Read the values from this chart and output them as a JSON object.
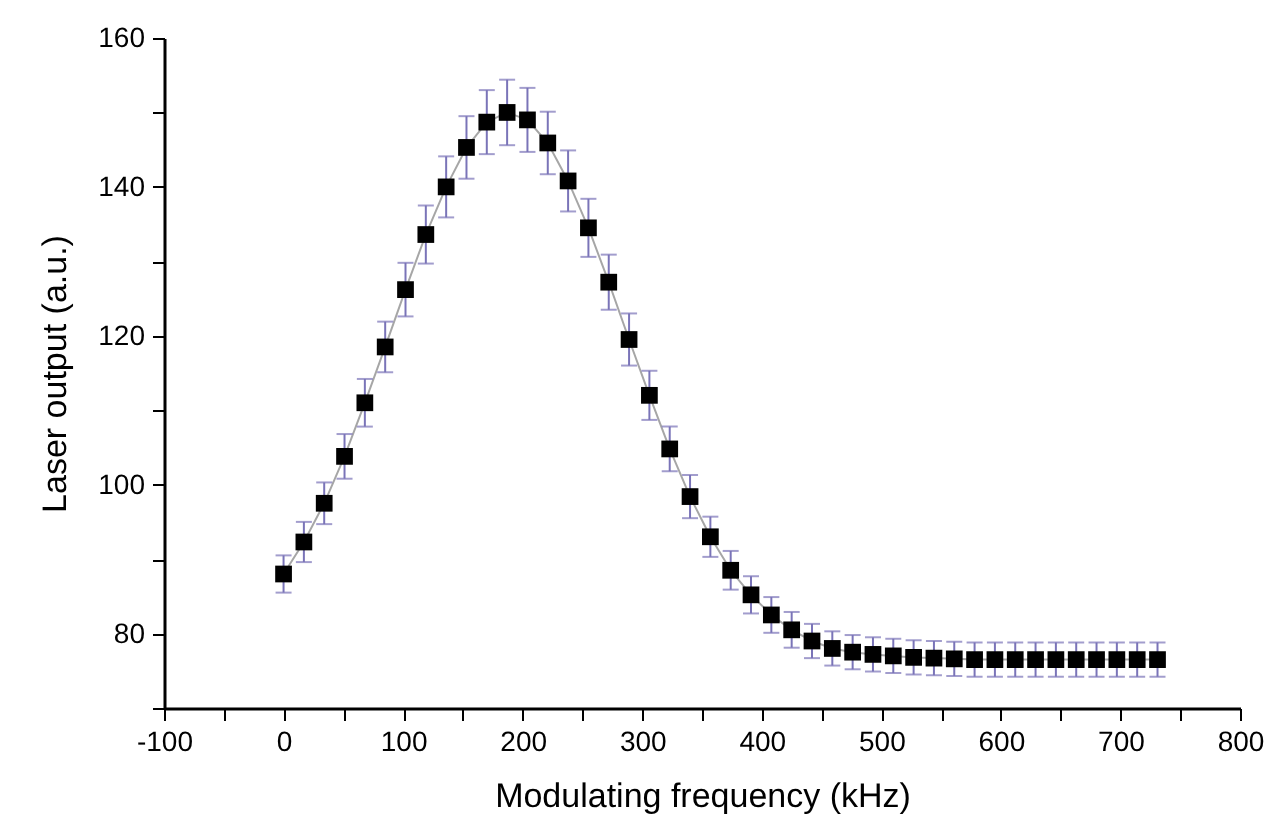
{
  "chart_data": {
    "type": "line",
    "xlabel": "Modulating frequency (kHz)",
    "ylabel": "Laser output (a.u.)",
    "x": [
      0,
      17,
      34,
      51,
      68,
      85,
      102,
      119,
      136,
      153,
      170,
      187,
      204,
      221,
      238,
      255,
      272,
      289,
      306,
      323,
      340,
      357,
      374,
      391,
      408,
      425,
      442,
      459,
      476,
      493,
      510,
      527,
      544,
      561,
      578,
      595,
      612,
      629,
      646,
      663,
      680,
      697,
      714,
      731
    ],
    "series": [
      {
        "color": "#000000",
        "values": [
          88,
          92.3,
          97.5,
          103.8,
          111,
          118.5,
          126.2,
          133.6,
          140,
          145.3,
          148.7,
          150,
          149,
          145.9,
          140.8,
          134.5,
          127.2,
          119.5,
          112,
          104.8,
          98.4,
          93,
          88.5,
          85.2,
          82.5,
          80.5,
          79,
          78,
          77.5,
          77.2,
          77,
          76.8,
          76.7,
          76.6,
          76.5,
          76.5,
          76.5,
          76.5,
          76.5,
          76.5,
          76.5,
          76.5,
          76.5,
          76.5
        ],
        "errors": [
          2.5,
          2.7,
          2.8,
          3,
          3.2,
          3.4,
          3.6,
          3.9,
          4.1,
          4.2,
          4.3,
          4.4,
          4.3,
          4.2,
          4.1,
          3.9,
          3.7,
          3.5,
          3.3,
          3,
          2.9,
          2.7,
          2.6,
          2.5,
          2.4,
          2.4,
          2.3,
          2.3,
          2.3,
          2.3,
          2.3,
          2.3,
          2.3,
          2.3,
          2.3,
          2.3,
          2.3,
          2.3,
          2.3,
          2.3,
          2.3,
          2.3,
          2.3,
          2.3
        ]
      }
    ],
    "marker": "square",
    "line_style": "solid",
    "grid": false,
    "xlim": [
      -100,
      800
    ],
    "xticks": [
      -100,
      {
        "value": -50,
        "label": null
      },
      0,
      {
        "value": 50,
        "label": null
      },
      100,
      {
        "value": 150,
        "label": null
      },
      200,
      {
        "value": 250,
        "label": null
      },
      300,
      {
        "value": 350,
        "label": null
      },
      400,
      {
        "value": 450,
        "label": null
      },
      500,
      {
        "value": 550,
        "label": null
      },
      600,
      {
        "value": 650,
        "label": null
      },
      700,
      {
        "value": 750,
        "label": null
      },
      800
    ],
    "ylim": [
      70,
      160
    ],
    "yticks": [
      {
        "value": 70,
        "label": null
      },
      80,
      {
        "value": 90,
        "label": null
      },
      100,
      {
        "value": 110,
        "label": null
      },
      120,
      {
        "value": 130,
        "label": null
      },
      140,
      {
        "value": 150,
        "label": null
      },
      160
    ]
  }
}
